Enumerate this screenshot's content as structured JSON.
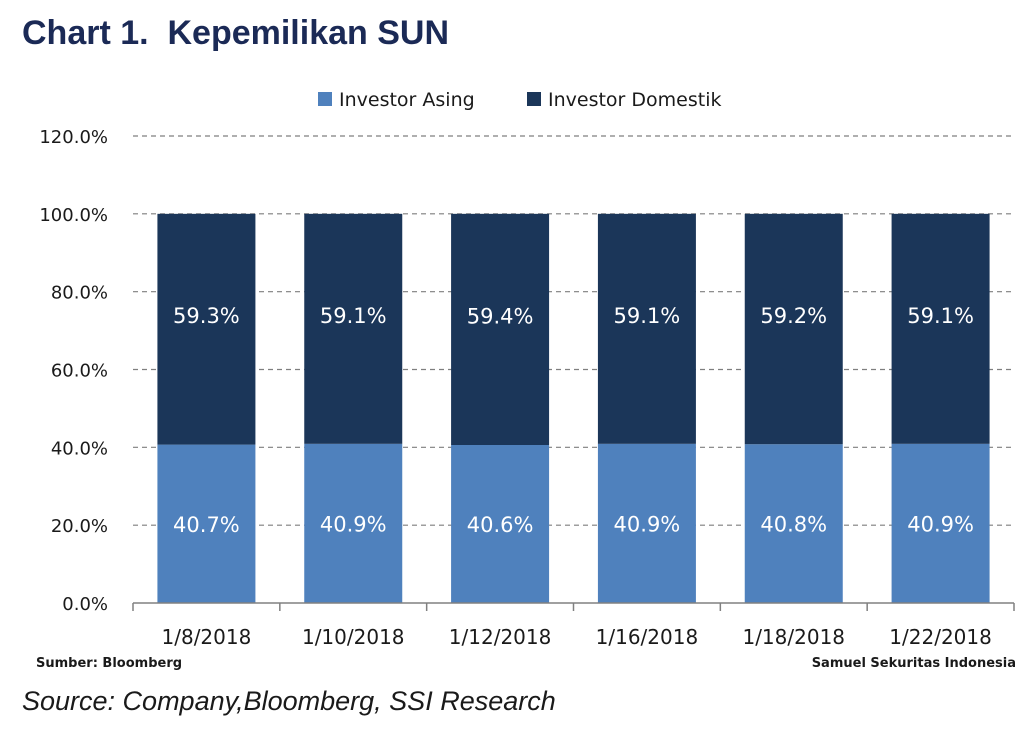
{
  "title": "Chart 1.  Kepemilikan SUN",
  "colors": {
    "investor_asing": "#4f81bd",
    "investor_domestik": "#1b3659",
    "grid": "#7f7f7f",
    "axis": "#808080"
  },
  "chart_data": {
    "type": "bar",
    "stacked": true,
    "categories": [
      "1/8/2018",
      "1/10/2018",
      "1/12/2018",
      "1/16/2018",
      "1/18/2018",
      "1/22/2018"
    ],
    "series": [
      {
        "name": "Investor Asing",
        "values": [
          40.7,
          40.9,
          40.6,
          40.9,
          40.8,
          40.9
        ],
        "labels": [
          "40.7%",
          "40.9%",
          "40.6%",
          "40.9%",
          "40.8%",
          "40.9%"
        ]
      },
      {
        "name": "Investor Domestik",
        "values": [
          59.3,
          59.1,
          59.4,
          59.1,
          59.2,
          59.1
        ],
        "labels": [
          "59.3%",
          "59.1%",
          "59.4%",
          "59.1%",
          "59.2%",
          "59.1%"
        ]
      }
    ],
    "ylim": [
      0,
      120
    ],
    "yticks": [
      0,
      20,
      40,
      60,
      80,
      100,
      120
    ],
    "ytick_labels": [
      "0.0%",
      "20.0%",
      "40.0%",
      "60.0%",
      "80.0%",
      "100.0%",
      "120.0%"
    ],
    "grid": "dashed horizontal",
    "legend_position": "top"
  },
  "footer": {
    "left_note": "Sumber: Bloomberg",
    "right_note": "Samuel Sekuritas Indonesia",
    "source": "Source: Company,Bloomberg, SSI Research"
  }
}
